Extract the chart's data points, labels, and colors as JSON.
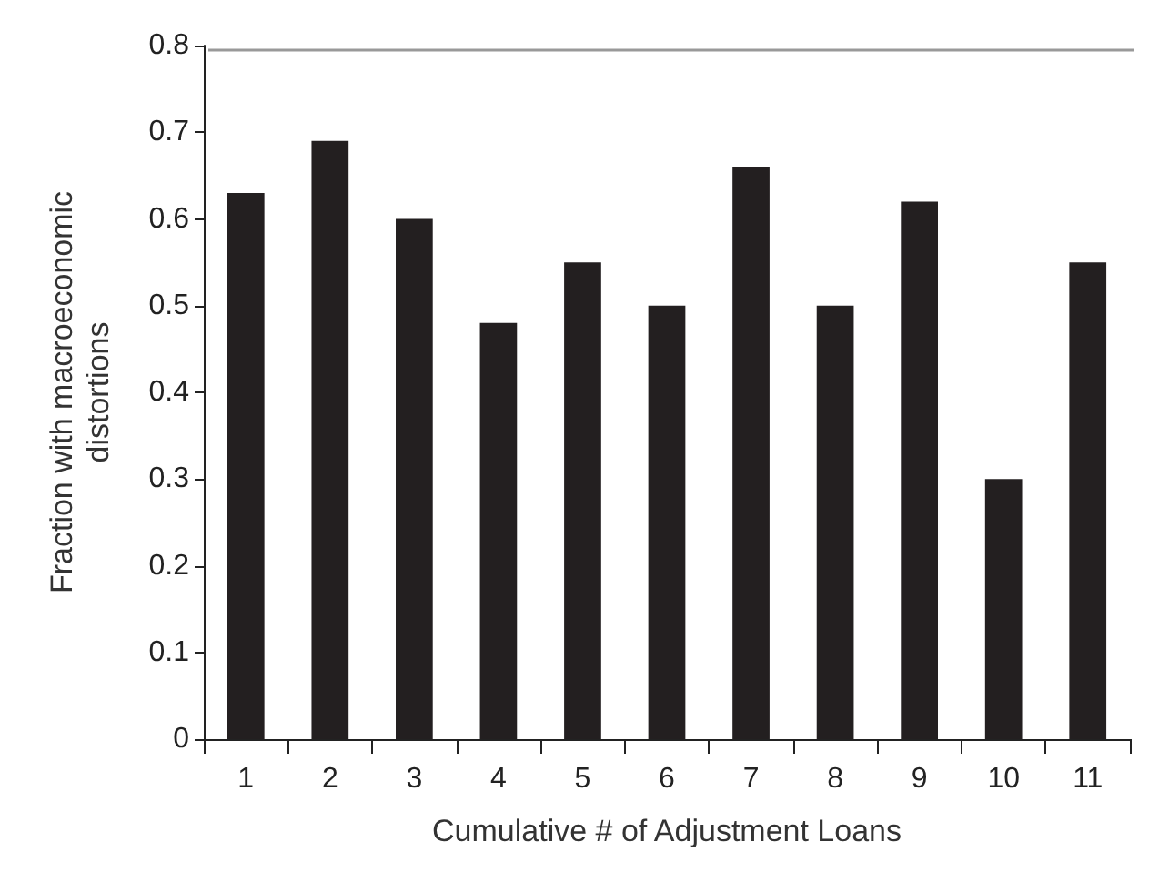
{
  "chart_data": {
    "type": "bar",
    "xlabel": "Cumulative # of Adjustment Loans",
    "ylabel": "Fraction with macroeconomic\ndistortions",
    "categories": [
      "1",
      "2",
      "3",
      "4",
      "5",
      "6",
      "7",
      "8",
      "9",
      "10",
      "11"
    ],
    "values": [
      0.63,
      0.69,
      0.6,
      0.48,
      0.55,
      0.5,
      0.66,
      0.5,
      0.62,
      0.3,
      0.55
    ],
    "color": "#231f20",
    "ylim": [
      0,
      0.8
    ],
    "yticks": [
      0,
      0.1,
      0.2,
      0.3,
      0.4,
      0.5,
      0.6,
      0.7,
      0.8
    ],
    "grid": false
  }
}
